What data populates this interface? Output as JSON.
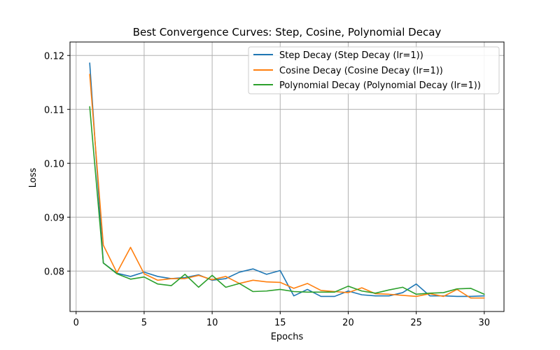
{
  "chart_data": {
    "type": "line",
    "title": "Best Convergence Curves: Step, Cosine, Polynomial Decay",
    "xlabel": "Epochs",
    "ylabel": "Loss",
    "xlim": [
      -0.45,
      31.45
    ],
    "ylim": [
      0.0725,
      0.1225
    ],
    "xticks": [
      0,
      5,
      10,
      15,
      20,
      25,
      30
    ],
    "yticks": [
      0.08,
      0.09,
      0.1,
      0.11,
      0.12
    ],
    "ytick_labels": [
      "0.08",
      "0.09",
      "0.10",
      "0.11",
      "0.12"
    ],
    "grid": true,
    "legend": "top-right",
    "x": [
      1,
      2,
      3,
      4,
      5,
      6,
      7,
      8,
      9,
      10,
      11,
      12,
      13,
      14,
      15,
      16,
      17,
      18,
      19,
      20,
      21,
      22,
      23,
      24,
      25,
      26,
      27,
      28,
      29,
      30
    ],
    "series": [
      {
        "name": "Step Decay (Step Decay (lr=1))",
        "color": "#1f77b4",
        "values": [
          0.1186,
          0.0815,
          0.0796,
          0.079,
          0.0798,
          0.079,
          0.0786,
          0.0788,
          0.0793,
          0.0783,
          0.0786,
          0.0798,
          0.0804,
          0.0794,
          0.0801,
          0.0754,
          0.0766,
          0.0753,
          0.0753,
          0.0763,
          0.0756,
          0.0754,
          0.0754,
          0.076,
          0.0776,
          0.0754,
          0.0754,
          0.0753,
          0.0753,
          0.0754
        ]
      },
      {
        "name": "Cosine Decay (Cosine Decay (lr=1))",
        "color": "#ff7f0e",
        "values": [
          0.1165,
          0.0848,
          0.0797,
          0.0844,
          0.0795,
          0.0783,
          0.0786,
          0.0786,
          0.0792,
          0.0784,
          0.079,
          0.0777,
          0.0783,
          0.078,
          0.0779,
          0.0768,
          0.0777,
          0.0764,
          0.0762,
          0.076,
          0.0769,
          0.0758,
          0.0757,
          0.0755,
          0.0753,
          0.0758,
          0.0753,
          0.0766,
          0.075,
          0.075
        ]
      },
      {
        "name": "Polynomial Decay (Polynomial Decay (lr=1))",
        "color": "#2ca02c",
        "values": [
          0.1105,
          0.0815,
          0.0795,
          0.0785,
          0.0789,
          0.0776,
          0.0773,
          0.0794,
          0.077,
          0.0792,
          0.077,
          0.0777,
          0.0762,
          0.0763,
          0.0766,
          0.0762,
          0.0761,
          0.0761,
          0.0761,
          0.0772,
          0.0763,
          0.0759,
          0.0765,
          0.077,
          0.0757,
          0.0759,
          0.076,
          0.0767,
          0.0768,
          0.0757
        ]
      }
    ]
  }
}
